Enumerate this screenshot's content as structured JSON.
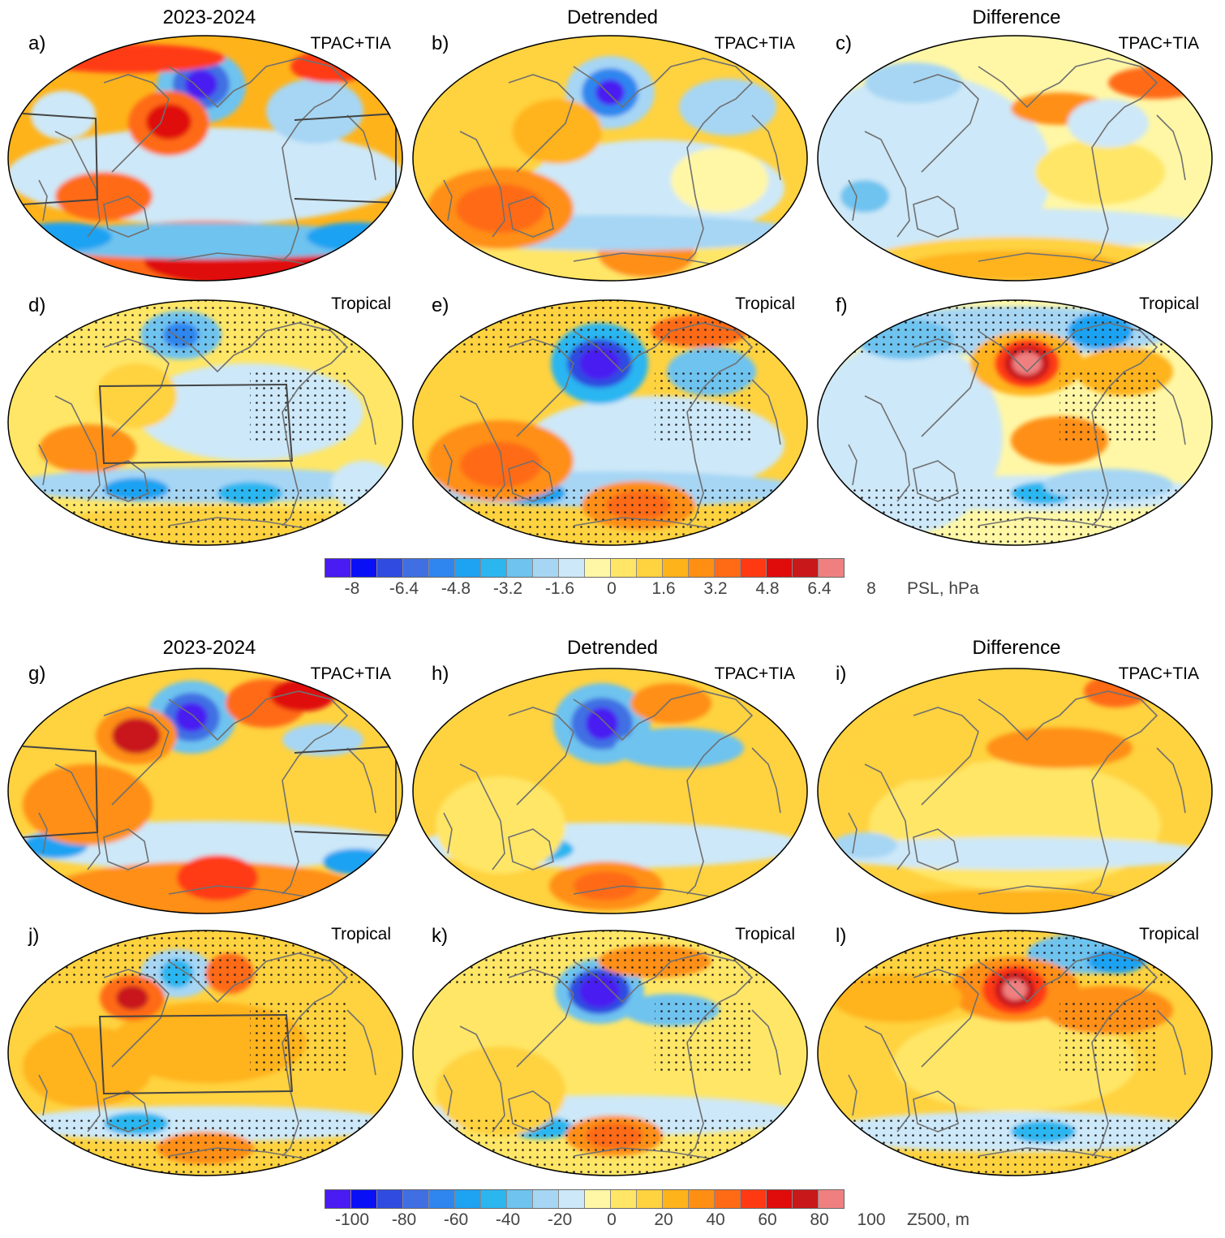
{
  "columns": [
    "2023-2024",
    "Detrended",
    "Difference"
  ],
  "psl_block": {
    "panels": [
      {
        "label": "a)",
        "experiment": "TPAC+TIA"
      },
      {
        "label": "b)",
        "experiment": "TPAC+TIA"
      },
      {
        "label": "c)",
        "experiment": "TPAC+TIA"
      },
      {
        "label": "d)",
        "experiment": "Tropical"
      },
      {
        "label": "e)",
        "experiment": "Tropical"
      },
      {
        "label": "f)",
        "experiment": "Tropical"
      }
    ],
    "colorbar": {
      "ticks": [
        "-8",
        "-6.4",
        "-4.8",
        "-3.2",
        "-1.6",
        "0",
        "1.6",
        "3.2",
        "4.8",
        "6.4",
        "8"
      ],
      "units": "PSL, hPa"
    }
  },
  "z500_block": {
    "panels": [
      {
        "label": "g)",
        "experiment": "TPAC+TIA"
      },
      {
        "label": "h)",
        "experiment": "TPAC+TIA"
      },
      {
        "label": "i)",
        "experiment": "TPAC+TIA"
      },
      {
        "label": "j)",
        "experiment": "Tropical"
      },
      {
        "label": "k)",
        "experiment": "Tropical"
      },
      {
        "label": "l)",
        "experiment": "Tropical"
      }
    ],
    "colorbar": {
      "ticks": [
        "-100",
        "-80",
        "-60",
        "-40",
        "-20",
        "0",
        "20",
        "40",
        "60",
        "80",
        "100"
      ],
      "units": "Z500, m"
    }
  },
  "palette": [
    "#4a1bf2",
    "#0a10f5",
    "#2f4be0",
    "#3f6fe3",
    "#2f86ef",
    "#1ea2f2",
    "#2cb6f0",
    "#6ec3ef",
    "#a6d6f4",
    "#cde8f8",
    "#fff7a6",
    "#ffe666",
    "#ffd23f",
    "#ffb31a",
    "#ff8f12",
    "#ff6a14",
    "#ff3a12",
    "#e00b0b",
    "#c8181a",
    "#f08080"
  ]
}
